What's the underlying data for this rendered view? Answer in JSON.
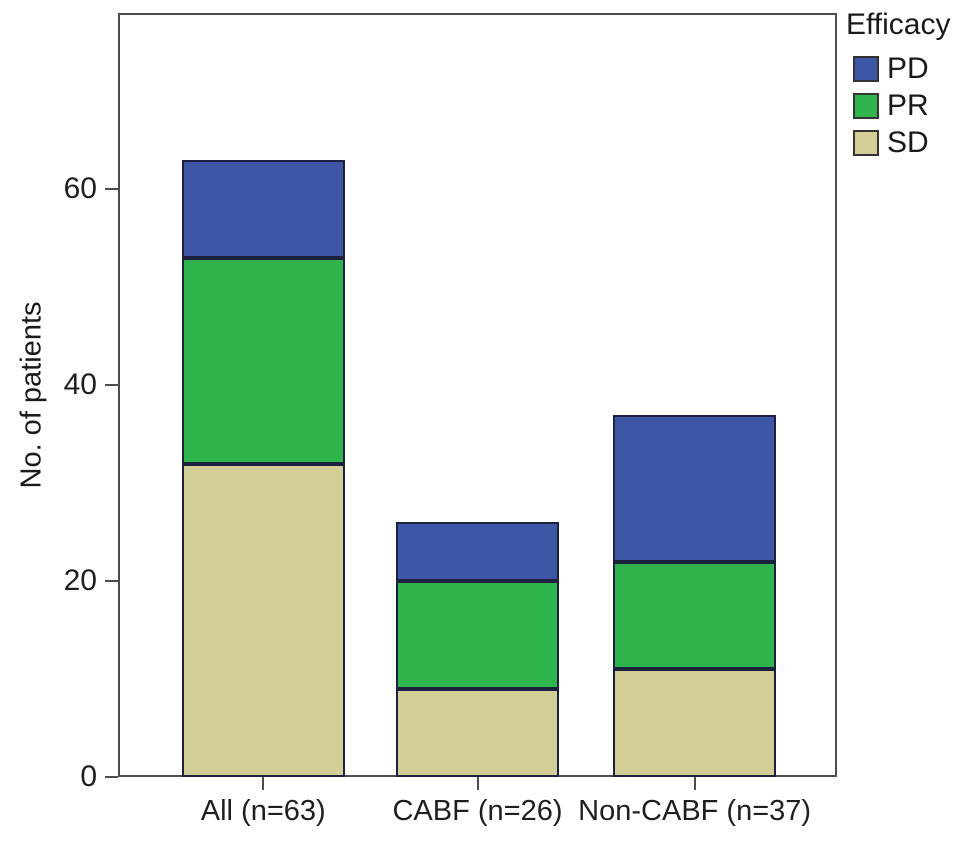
{
  "figure": {
    "background": "#ffffff",
    "frame_color": "#4d4d4d",
    "text_color": "#1a1a1a"
  },
  "chart_data": {
    "type": "bar",
    "stacked": true,
    "title": "",
    "xlabel": "",
    "ylabel": "No. of patients",
    "ylim": [
      0,
      78
    ],
    "yticks": [
      0,
      20,
      40,
      60
    ],
    "grid": false,
    "categories": [
      "All (n=63)",
      "CABF (n=26)",
      "Non-CABF (n=37)"
    ],
    "series": [
      {
        "name": "SD",
        "color": "#D3CE96",
        "values": [
          32,
          9,
          11
        ]
      },
      {
        "name": "PR",
        "color": "#30B44C",
        "values": [
          21,
          11,
          11
        ]
      },
      {
        "name": "PD",
        "color": "#3E56A6",
        "values": [
          10,
          6,
          15
        ]
      }
    ],
    "totals": [
      63,
      26,
      37
    ],
    "segment_border_color": "#1c2140",
    "legend": {
      "title": "Efficacy",
      "position": "top-right-outside",
      "entries": [
        {
          "label": "PD",
          "color": "#3E56A6"
        },
        {
          "label": "PR",
          "color": "#30B44C"
        },
        {
          "label": "SD",
          "color": "#D3CE96"
        }
      ]
    }
  }
}
